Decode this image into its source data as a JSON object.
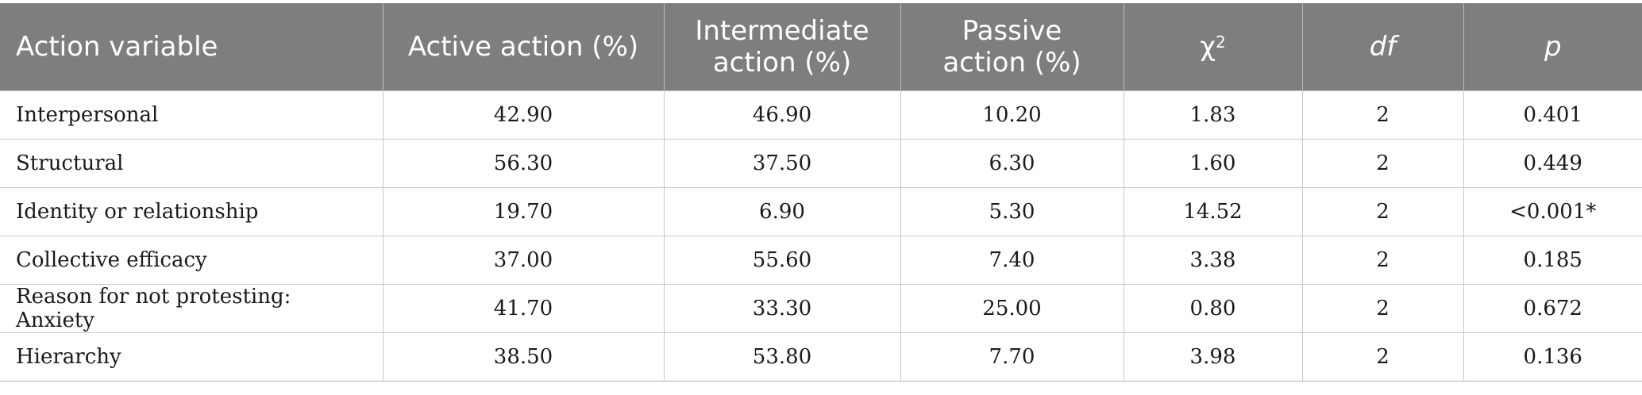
{
  "table": {
    "headers": {
      "variable": "Action variable",
      "active": "Active action (%)",
      "intermediate_line1": "Intermediate",
      "intermediate_line2": "action (%)",
      "passive_line1": "Passive",
      "passive_line2": "action (%)",
      "chi_base": "χ",
      "chi_sup": "2",
      "df": "df",
      "p": "p"
    },
    "rows": [
      {
        "variable": "Interpersonal",
        "active": "42.90",
        "intermediate": "46.90",
        "passive": "10.20",
        "chi2": "1.83",
        "df": "2",
        "p": "0.401"
      },
      {
        "variable": "Structural",
        "active": "56.30",
        "intermediate": "37.50",
        "passive": "6.30",
        "chi2": "1.60",
        "df": "2",
        "p": "0.449"
      },
      {
        "variable": "Identity or relationship",
        "active": "19.70",
        "intermediate": "6.90",
        "passive": "5.30",
        "chi2": "14.52",
        "df": "2",
        "p": "<0.001*"
      },
      {
        "variable": "Collective efficacy",
        "active": "37.00",
        "intermediate": "55.60",
        "passive": "7.40",
        "chi2": "3.38",
        "df": "2",
        "p": "0.185"
      },
      {
        "variable": "Reason for not protesting: Anxiety",
        "active": "41.70",
        "intermediate": "33.30",
        "passive": "25.00",
        "chi2": "0.80",
        "df": "2",
        "p": "0.672"
      },
      {
        "variable": "Hierarchy",
        "active": "38.50",
        "intermediate": "53.80",
        "passive": "7.70",
        "chi2": "3.98",
        "df": "2",
        "p": "0.136"
      }
    ]
  }
}
